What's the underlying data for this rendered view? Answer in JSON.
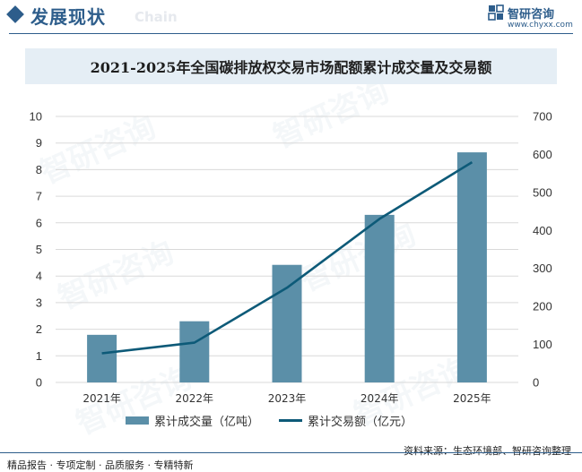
{
  "header": {
    "section_title": "发展现状",
    "section_title_en": "Chain",
    "logo_name": "智研咨询",
    "logo_url": "www.chyxx.com"
  },
  "watermark": "智研咨询",
  "colors": {
    "bar": "#5b8fa8",
    "line": "#0d5a78",
    "brand": "#2d5d8b",
    "title_band": "#e5eef5"
  },
  "chart_data": {
    "type": "bar",
    "title": "2021-2025年全国碳排放权交易市场配额累计成交量及交易额",
    "categories": [
      "2021年",
      "2022年",
      "2023年",
      "2024年",
      "2025年"
    ],
    "series": [
      {
        "name": "累计成交量（亿吨）",
        "type": "bar",
        "axis": "left",
        "values": [
          1.79,
          2.3,
          4.42,
          6.3,
          8.65
        ]
      },
      {
        "name": "累计交易额（亿元）",
        "type": "line",
        "axis": "right",
        "values": [
          76.61,
          104.75,
          249.19,
          430.33,
          579.5
        ]
      }
    ],
    "y_left": {
      "min": 0,
      "max": 10,
      "ticks": [
        "0",
        "1",
        "2",
        "3",
        "4",
        "5",
        "6",
        "7",
        "8",
        "9",
        "10"
      ]
    },
    "y_right": {
      "min": 0,
      "max": 700,
      "ticks": [
        "0",
        "100",
        "200",
        "300",
        "400",
        "500",
        "600",
        "700"
      ]
    },
    "grid": true,
    "legend": "bottom"
  },
  "footer": {
    "source": "资料来源：生态环境部、智研咨询整理",
    "slogan": "精品报告 · 专项定制 · 品质服务 · 专精特新"
  }
}
